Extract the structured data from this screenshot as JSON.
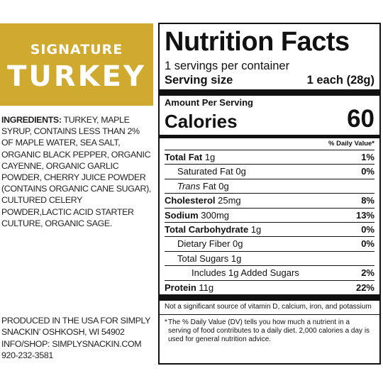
{
  "banner": {
    "line1": "SIGNATURE",
    "line2": "TURKEY",
    "color": "#cfaa2e"
  },
  "ingredients": {
    "heading": "INGREDIENTS:",
    "text": " TURKEY, MAPLE SYRUP, CONTAINS LESS THAN 2% OF MAPLE WATER, SEA SALT, ORGANIC BLACK PEPPER, ORGANIC CAYENNE, ORGANIC GARLIC POWDER, CHERRY JUICE POWDER (CONTAINS ORGANIC CANE SUGAR), CULTURED CELERY POWDER,LACTIC ACID STARTER CULTURE, ORGANIC SAGE."
  },
  "company": {
    "line1": "PRODUCED IN THE USA FOR SIMPLY",
    "line2": "SNACKIN’ OSHKOSH, WI 54902",
    "line3": "INFO/SHOP: SIMPLYSNACKIN.COM",
    "line4": "920-232-3581"
  },
  "nutrition": {
    "title": "Nutrition Facts",
    "servings_per_container": "1 servings per container",
    "serving_size_label": "Serving size",
    "serving_size_value": "1 each (28g)",
    "amount_per_serving": "Amount Per Serving",
    "calories_label": "Calories",
    "calories_value": "60",
    "dv_header": "% Daily Value*",
    "rows": [
      {
        "name": "Total Fat",
        "amount": " 1g",
        "dv": "1%"
      },
      {
        "name": "Saturated Fat",
        "amount": " 0g",
        "dv": "0%"
      },
      {
        "name": "Trans",
        "amount": " Fat 0g",
        "dv": ""
      },
      {
        "name": "Cholesterol",
        "amount": " 25mg",
        "dv": "8%"
      },
      {
        "name": "Sodium",
        "amount": " 300mg",
        "dv": "13%"
      },
      {
        "name": "Total Carbohydrate",
        "amount": " 1g",
        "dv": "0%"
      },
      {
        "name": "Dietary Fiber",
        "amount": " 0g",
        "dv": "0%"
      },
      {
        "name": "Total Sugars",
        "amount": " 1g",
        "dv": ""
      },
      {
        "name": "Includes 1g Added Sugars",
        "amount": "",
        "dv": "2%"
      },
      {
        "name": "Protein",
        "amount": " 11g",
        "dv": "22%"
      }
    ],
    "vitamin_note": "Not a significant source of vitamin D, calcium, iron, and potassium",
    "footnote_mark": "*",
    "footnote": "The % Daily Value (DV) tells you how much a nutrient in a serving of food contributes to a daily diet. 2,000 calories a day is used for general nutrition advice."
  }
}
